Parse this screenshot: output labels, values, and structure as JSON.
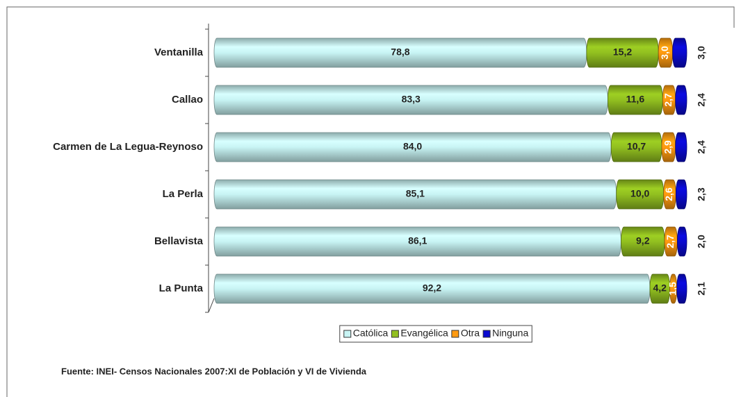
{
  "chart_data": {
    "type": "stacked-bar-horizontal",
    "categories": [
      "Ventanilla",
      "Callao",
      "Carmen de La Legua-Reynoso",
      "La Perla",
      "Bellavista",
      "La Punta"
    ],
    "series": [
      {
        "name": "Católica",
        "color": "#c8f4f4",
        "values": [
          78.8,
          83.3,
          84.0,
          85.1,
          86.1,
          92.2
        ],
        "value_labels": [
          "78,8",
          "83,3",
          "84,0",
          "85,1",
          "86,1",
          "92,2"
        ]
      },
      {
        "name": "Evangélica",
        "color": "#92c020",
        "values": [
          15.2,
          11.6,
          10.7,
          10.0,
          9.2,
          4.2
        ],
        "value_labels": [
          "15,2",
          "11,6",
          "10,7",
          "10,0",
          "9,2",
          "4,2"
        ]
      },
      {
        "name": "Otra",
        "color": "#ff9a10",
        "values": [
          3.0,
          2.7,
          2.9,
          2.6,
          2.7,
          1.5
        ],
        "value_labels": [
          "3,0",
          "2,7",
          "2,9",
          "2,6",
          "2,7",
          "1,5"
        ]
      },
      {
        "name": "Ninguna",
        "color": "#0a0ad0",
        "values": [
          3.0,
          2.4,
          2.4,
          2.3,
          2.0,
          2.1
        ],
        "value_labels": [
          "3,0",
          "2,4",
          "2,4",
          "2,3",
          "2,0",
          "2,1"
        ]
      }
    ],
    "xlim": [
      0,
      100
    ],
    "legend": "bottom",
    "source": "Fuente: INEI- Censos Nacionales 2007:XI de Población y VI  de Vivienda"
  }
}
